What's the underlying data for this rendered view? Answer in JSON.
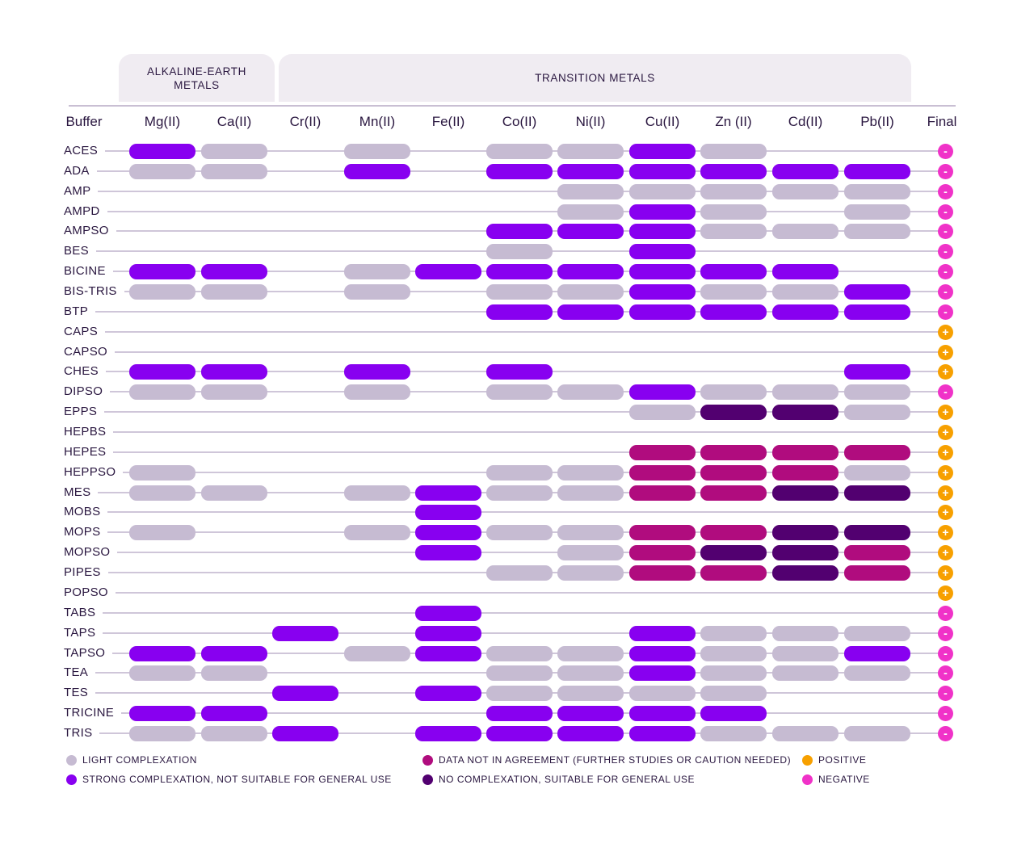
{
  "chart_data": {
    "type": "table",
    "groups": [
      {
        "label": "ALKALINE-EARTH METALS",
        "line1": "ALKALINE-EARTH",
        "line2": "METALS"
      },
      {
        "label": "TRANSITION METALS"
      }
    ],
    "buffer_header": "Buffer",
    "final_header": "Final",
    "columns": [
      "Mg(II)",
      "Ca(II)",
      "Cr(II)",
      "Mn(II)",
      "Fe(II)",
      "Co(II)",
      "Ni(II)",
      "Cu(II)",
      "Zn (II)",
      "Cd(II)",
      "Pb(II)"
    ],
    "legend_codes": {
      "L": "LIGHT COMPLEXATION",
      "S": "STRONG COMPLEXATION, NOT SUITABLE FOR GENERAL USE",
      "D": "DATA NOT IN AGREEMENT (FURTHER STUDIES OR CAUTION NEEDED)",
      "N": "NO COMPLEXATION, SUITABLE FOR GENERAL USE",
      "+": "POSITIVE",
      "-": "NEGATIVE"
    },
    "rows": [
      {
        "buffer": "ACES",
        "values": [
          "S",
          "L",
          "",
          "L",
          "",
          "L",
          "L",
          "S",
          "L",
          "",
          ""
        ],
        "final": "-"
      },
      {
        "buffer": "ADA",
        "values": [
          "L",
          "L",
          "",
          "S",
          "",
          "S",
          "S",
          "S",
          "S",
          "S",
          "S"
        ],
        "final": "-"
      },
      {
        "buffer": "AMP",
        "values": [
          "",
          "",
          "",
          "",
          "",
          "",
          "L",
          "L",
          "L",
          "L",
          "L"
        ],
        "final": "-"
      },
      {
        "buffer": "AMPD",
        "values": [
          "",
          "",
          "",
          "",
          "",
          "",
          "L",
          "S",
          "L",
          "",
          "L"
        ],
        "final": "-"
      },
      {
        "buffer": "AMPSO",
        "values": [
          "",
          "",
          "",
          "",
          "",
          "S",
          "S",
          "S",
          "L",
          "L",
          "L"
        ],
        "final": "-"
      },
      {
        "buffer": "BES",
        "values": [
          "",
          "",
          "",
          "",
          "",
          "L",
          "",
          "S",
          "",
          "",
          ""
        ],
        "final": "-"
      },
      {
        "buffer": "BICINE",
        "values": [
          "S",
          "S",
          "",
          "L",
          "S",
          "S",
          "S",
          "S",
          "S",
          "S",
          ""
        ],
        "final": "-"
      },
      {
        "buffer": "BIS-TRIS",
        "values": [
          "L",
          "L",
          "",
          "L",
          "",
          "L",
          "L",
          "S",
          "L",
          "L",
          "S"
        ],
        "final": "-"
      },
      {
        "buffer": "BTP",
        "values": [
          "",
          "",
          "",
          "",
          "",
          "S",
          "S",
          "S",
          "S",
          "S",
          "S"
        ],
        "final": "-"
      },
      {
        "buffer": "CAPS",
        "values": [
          "",
          "",
          "",
          "",
          "",
          "",
          "",
          "",
          "",
          "",
          ""
        ],
        "final": "+"
      },
      {
        "buffer": "CAPSO",
        "values": [
          "",
          "",
          "",
          "",
          "",
          "",
          "",
          "",
          "",
          "",
          ""
        ],
        "final": "+"
      },
      {
        "buffer": "CHES",
        "values": [
          "S",
          "S",
          "",
          "S",
          "",
          "S",
          "",
          "",
          "",
          "",
          "S"
        ],
        "final": "+"
      },
      {
        "buffer": "DIPSO",
        "values": [
          "L",
          "L",
          "",
          "L",
          "",
          "L",
          "L",
          "S",
          "L",
          "L",
          "L"
        ],
        "final": "-"
      },
      {
        "buffer": "EPPS",
        "values": [
          "",
          "",
          "",
          "",
          "",
          "",
          "",
          "L",
          "N",
          "N",
          "L"
        ],
        "final": "+"
      },
      {
        "buffer": "HEPBS",
        "values": [
          "",
          "",
          "",
          "",
          "",
          "",
          "",
          "",
          "",
          "",
          ""
        ],
        "final": "+"
      },
      {
        "buffer": "HEPES",
        "values": [
          "",
          "",
          "",
          "",
          "",
          "",
          "",
          "D",
          "D",
          "D",
          "D"
        ],
        "final": "+"
      },
      {
        "buffer": "HEPPSO",
        "values": [
          "L",
          "",
          "",
          "",
          "",
          "L",
          "L",
          "D",
          "D",
          "D",
          "L"
        ],
        "final": "+"
      },
      {
        "buffer": "MES",
        "values": [
          "L",
          "L",
          "",
          "L",
          "S",
          "L",
          "L",
          "D",
          "D",
          "N",
          "N"
        ],
        "final": "+"
      },
      {
        "buffer": "MOBS",
        "values": [
          "",
          "",
          "",
          "",
          "S",
          "",
          "",
          "",
          "",
          "",
          ""
        ],
        "final": "+"
      },
      {
        "buffer": "MOPS",
        "values": [
          "L",
          "",
          "",
          "L",
          "S",
          "L",
          "L",
          "D",
          "D",
          "N",
          "N"
        ],
        "final": "+"
      },
      {
        "buffer": "MOPSO",
        "values": [
          "",
          "",
          "",
          "",
          "S",
          "",
          "L",
          "D",
          "N",
          "N",
          "D"
        ],
        "final": "+"
      },
      {
        "buffer": "PIPES",
        "values": [
          "",
          "",
          "",
          "",
          "",
          "L",
          "L",
          "D",
          "D",
          "N",
          "D"
        ],
        "final": "+"
      },
      {
        "buffer": "POPSO",
        "values": [
          "",
          "",
          "",
          "",
          "",
          "",
          "",
          "",
          "",
          "",
          ""
        ],
        "final": "+"
      },
      {
        "buffer": "TABS",
        "values": [
          "",
          "",
          "",
          "",
          "S",
          "",
          "",
          "",
          "",
          "",
          ""
        ],
        "final": "-"
      },
      {
        "buffer": "TAPS",
        "values": [
          "",
          "",
          "S",
          "",
          "S",
          "",
          "",
          "S",
          "L",
          "L",
          "L"
        ],
        "final": "-"
      },
      {
        "buffer": "TAPSO",
        "values": [
          "S",
          "S",
          "",
          "L",
          "S",
          "L",
          "L",
          "S",
          "L",
          "L",
          "S"
        ],
        "final": "-"
      },
      {
        "buffer": "TEA",
        "values": [
          "L",
          "L",
          "",
          "",
          "",
          "L",
          "L",
          "S",
          "L",
          "L",
          "L"
        ],
        "final": "-"
      },
      {
        "buffer": "TES",
        "values": [
          "",
          "",
          "S",
          "",
          "S",
          "L",
          "L",
          "L",
          "L",
          "",
          ""
        ],
        "final": "-"
      },
      {
        "buffer": "TRICINE",
        "values": [
          "S",
          "S",
          "",
          "",
          "",
          "S",
          "S",
          "S",
          "S",
          "",
          ""
        ],
        "final": "-"
      },
      {
        "buffer": "TRIS",
        "values": [
          "L",
          "L",
          "S",
          "",
          "S",
          "S",
          "S",
          "S",
          "L",
          "L",
          "L"
        ],
        "final": "-"
      }
    ]
  },
  "colors": {
    "L": "#c6bbd2",
    "S": "#8800f0",
    "D": "#b00c7e",
    "N": "#520070",
    "+": "#f7a000",
    "-": "#f032c8"
  },
  "legend": [
    {
      "code": "L",
      "label": "LIGHT COMPLEXATION"
    },
    {
      "code": "S",
      "label": "STRONG COMPLEXATION, NOT SUITABLE FOR GENERAL USE"
    },
    {
      "code": "D",
      "label": "DATA NOT IN AGREEMENT (FURTHER STUDIES OR CAUTION NEEDED)"
    },
    {
      "code": "N",
      "label": "NO COMPLEXATION, SUITABLE FOR GENERAL USE"
    },
    {
      "code": "+",
      "label": "POSITIVE"
    },
    {
      "code": "-",
      "label": "NEGATIVE"
    }
  ],
  "final_symbols": {
    "+": "+",
    "-": "-"
  }
}
